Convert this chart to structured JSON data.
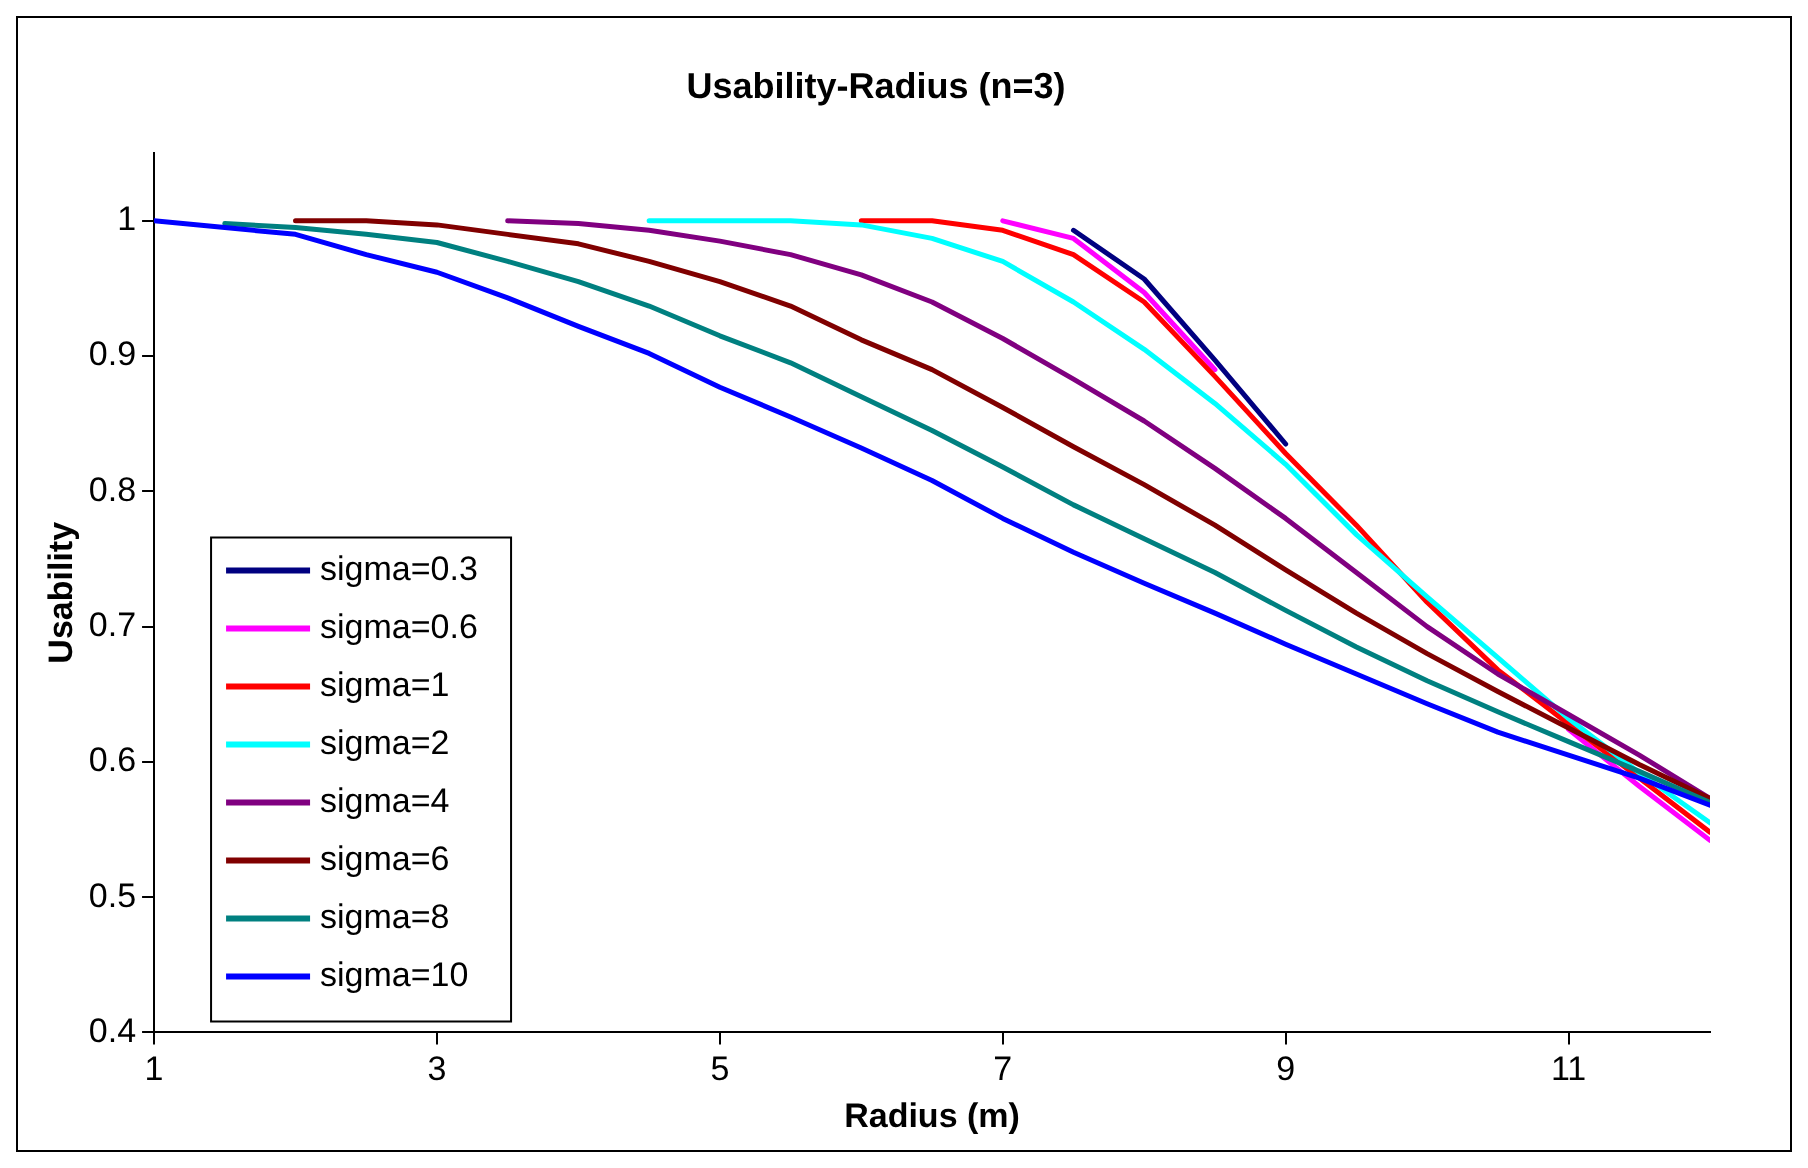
{
  "chart_data": {
    "type": "line",
    "title": "Usability-Radius (n=3)",
    "xlabel": "Radius (m)",
    "ylabel": "Usability",
    "x": [
      1,
      1.5,
      2,
      2.5,
      3,
      3.5,
      4,
      4.5,
      5,
      5.5,
      6,
      6.5,
      7,
      7.5,
      8,
      8.5,
      9,
      9.5,
      10,
      10.5,
      11,
      11.5,
      12
    ],
    "xlim": [
      1,
      12
    ],
    "xticks": [
      1,
      3,
      5,
      7,
      9,
      11
    ],
    "ylim": [
      0.4,
      1.05
    ],
    "yticks": [
      0.4,
      0.5,
      0.6,
      0.7,
      0.8,
      0.9,
      1
    ],
    "grid": false,
    "legend": "bottom left",
    "marker": "none",
    "line_style": "solid",
    "series": [
      {
        "name": "sigma=0.3",
        "color": "#000080",
        "values": [
          null,
          null,
          null,
          null,
          null,
          null,
          null,
          null,
          null,
          null,
          null,
          null,
          null,
          0.993,
          0.957,
          0.897,
          0.835,
          null,
          null,
          null,
          null,
          null,
          null
        ]
      },
      {
        "name": "sigma=0.6",
        "color": "#ff00ff",
        "values": [
          null,
          null,
          null,
          null,
          null,
          null,
          null,
          null,
          null,
          null,
          null,
          null,
          1,
          0.987,
          0.947,
          0.89,
          null,
          null,
          null,
          null,
          0.624,
          0.582,
          0.542
        ]
      },
      {
        "name": "sigma=1",
        "color": "#ff0000",
        "values": [
          null,
          null,
          null,
          null,
          null,
          null,
          null,
          null,
          null,
          null,
          1,
          1,
          0.993,
          0.975,
          0.94,
          0.885,
          0.828,
          0.775,
          0.718,
          0.668,
          0.628,
          0.588,
          0.548
        ]
      },
      {
        "name": "sigma=2",
        "color": "#00ffff",
        "values": [
          null,
          null,
          null,
          null,
          null,
          null,
          null,
          1,
          1,
          1,
          0.997,
          0.987,
          0.97,
          0.94,
          0.905,
          0.865,
          0.82,
          0.768,
          0.722,
          0.677,
          0.632,
          0.592,
          0.555
        ]
      },
      {
        "name": "sigma=4",
        "color": "#800080",
        "values": [
          null,
          null,
          null,
          null,
          null,
          1,
          0.998,
          0.993,
          0.985,
          0.975,
          0.96,
          0.94,
          0.913,
          0.883,
          0.852,
          0.817,
          0.78,
          0.74,
          0.7,
          0.665,
          0.635,
          0.605,
          0.573
        ]
      },
      {
        "name": "sigma=6",
        "color": "#800000",
        "values": [
          null,
          null,
          1,
          1,
          0.997,
          0.99,
          0.983,
          0.97,
          0.955,
          0.937,
          0.912,
          0.89,
          0.862,
          0.833,
          0.805,
          0.775,
          0.742,
          0.71,
          0.68,
          0.652,
          0.625,
          0.598,
          0.573
        ]
      },
      {
        "name": "sigma=8",
        "color": "#008080",
        "values": [
          null,
          0.998,
          0.995,
          0.99,
          0.984,
          0.97,
          0.955,
          0.937,
          0.915,
          0.895,
          0.87,
          0.845,
          0.818,
          0.79,
          0.765,
          0.74,
          0.712,
          0.685,
          0.66,
          0.637,
          0.615,
          0.593,
          0.57
        ]
      },
      {
        "name": "sigma=10",
        "color": "#0000ff",
        "values": [
          1,
          0.995,
          0.99,
          0.975,
          0.962,
          0.943,
          0.922,
          0.902,
          0.877,
          0.855,
          0.832,
          0.808,
          0.78,
          0.755,
          0.732,
          0.71,
          0.687,
          0.665,
          0.643,
          0.622,
          0.605,
          0.588,
          0.568
        ]
      }
    ]
  }
}
